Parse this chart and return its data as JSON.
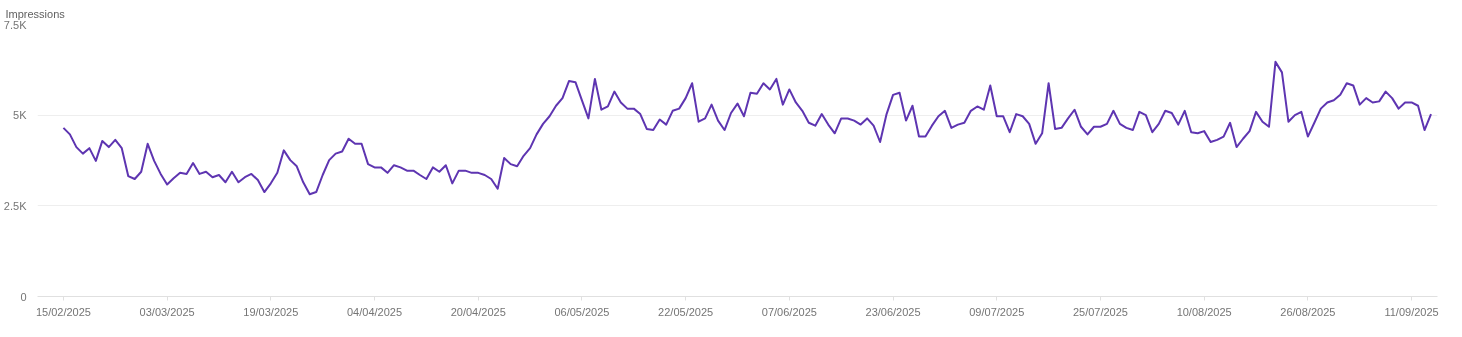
{
  "chart_data": {
    "type": "line",
    "ylabel": "Impressions",
    "x": [
      "2025-02-15",
      "2025-02-16",
      "2025-02-17",
      "2025-02-18",
      "2025-02-19",
      "2025-02-20",
      "2025-02-21",
      "2025-02-22",
      "2025-02-23",
      "2025-02-24",
      "2025-02-25",
      "2025-02-26",
      "2025-02-27",
      "2025-02-28",
      "2025-03-01",
      "2025-03-02",
      "2025-03-03",
      "2025-03-04",
      "2025-03-05",
      "2025-03-06",
      "2025-03-07",
      "2025-03-08",
      "2025-03-09",
      "2025-03-10",
      "2025-03-11",
      "2025-03-12",
      "2025-03-13",
      "2025-03-14",
      "2025-03-15",
      "2025-03-16",
      "2025-03-17",
      "2025-03-18",
      "2025-03-19",
      "2025-03-20",
      "2025-03-21",
      "2025-03-22",
      "2025-03-23",
      "2025-03-24",
      "2025-03-25",
      "2025-03-26",
      "2025-03-27",
      "2025-03-28",
      "2025-03-29",
      "2025-03-30",
      "2025-03-31",
      "2025-04-01",
      "2025-04-02",
      "2025-04-03",
      "2025-04-04",
      "2025-04-05",
      "2025-04-06",
      "2025-04-07",
      "2025-04-08",
      "2025-04-09",
      "2025-04-10",
      "2025-04-11",
      "2025-04-12",
      "2025-04-13",
      "2025-04-14",
      "2025-04-15",
      "2025-04-16",
      "2025-04-17",
      "2025-04-18",
      "2025-04-19",
      "2025-04-20",
      "2025-04-21",
      "2025-04-22",
      "2025-04-23",
      "2025-04-24",
      "2025-04-25",
      "2025-04-26",
      "2025-04-27",
      "2025-04-28",
      "2025-04-29",
      "2025-04-30",
      "2025-05-01",
      "2025-05-02",
      "2025-05-03",
      "2025-05-04",
      "2025-05-05",
      "2025-05-06",
      "2025-05-07",
      "2025-05-08",
      "2025-05-09",
      "2025-05-10",
      "2025-05-11",
      "2025-05-12",
      "2025-05-13",
      "2025-05-14",
      "2025-05-15",
      "2025-05-16",
      "2025-05-17",
      "2025-05-18",
      "2025-05-19",
      "2025-05-20",
      "2025-05-21",
      "2025-05-22",
      "2025-05-23",
      "2025-05-24",
      "2025-05-25",
      "2025-05-26",
      "2025-05-27",
      "2025-05-28",
      "2025-05-29",
      "2025-05-30",
      "2025-05-31",
      "2025-06-01",
      "2025-06-02",
      "2025-06-03",
      "2025-06-04",
      "2025-06-05",
      "2025-06-06",
      "2025-06-07",
      "2025-06-08",
      "2025-06-09",
      "2025-06-10",
      "2025-06-11",
      "2025-06-12",
      "2025-06-13",
      "2025-06-14",
      "2025-06-15",
      "2025-06-16",
      "2025-06-17",
      "2025-06-18",
      "2025-06-19",
      "2025-06-20",
      "2025-06-21",
      "2025-06-22",
      "2025-06-23",
      "2025-06-24",
      "2025-06-25",
      "2025-06-26",
      "2025-06-27",
      "2025-06-28",
      "2025-06-29",
      "2025-06-30",
      "2025-07-01",
      "2025-07-02",
      "2025-07-03",
      "2025-07-04",
      "2025-07-05",
      "2025-07-06",
      "2025-07-07",
      "2025-07-08",
      "2025-07-09",
      "2025-07-10",
      "2025-07-11",
      "2025-07-12",
      "2025-07-13",
      "2025-07-14",
      "2025-07-15",
      "2025-07-16",
      "2025-07-17",
      "2025-07-18",
      "2025-07-19",
      "2025-07-20",
      "2025-07-21",
      "2025-07-22",
      "2025-07-23",
      "2025-07-24",
      "2025-07-25",
      "2025-07-26",
      "2025-07-27",
      "2025-07-28",
      "2025-07-29",
      "2025-07-30",
      "2025-07-31",
      "2025-08-01",
      "2025-08-02",
      "2025-08-03",
      "2025-08-04",
      "2025-08-05",
      "2025-08-06",
      "2025-08-07",
      "2025-08-08",
      "2025-08-09",
      "2025-08-10",
      "2025-08-11",
      "2025-08-12",
      "2025-08-13",
      "2025-08-14",
      "2025-08-15",
      "2025-08-16",
      "2025-08-17",
      "2025-08-18",
      "2025-08-19",
      "2025-08-20",
      "2025-08-21",
      "2025-08-22",
      "2025-08-23",
      "2025-08-24",
      "2025-08-25",
      "2025-08-26",
      "2025-08-27",
      "2025-08-28",
      "2025-08-29",
      "2025-08-30",
      "2025-08-31",
      "2025-09-01",
      "2025-09-02",
      "2025-09-03",
      "2025-09-04",
      "2025-09-05",
      "2025-09-06",
      "2025-09-07",
      "2025-09-08",
      "2025-09-09",
      "2025-09-10",
      "2025-09-11",
      "2025-09-12",
      "2025-09-13",
      "2025-09-14"
    ],
    "series": [
      {
        "color": "#5e35b1",
        "values": [
          4650,
          4470,
          4120,
          3940,
          4090,
          3740,
          4290,
          4120,
          4320,
          4090,
          3320,
          3240,
          3440,
          4210,
          3740,
          3380,
          3090,
          3260,
          3410,
          3380,
          3680,
          3380,
          3440,
          3290,
          3350,
          3150,
          3440,
          3150,
          3290,
          3380,
          3210,
          2880,
          3120,
          3410,
          4030,
          3760,
          3590,
          3150,
          2820,
          2880,
          3350,
          3760,
          3940,
          4000,
          4350,
          4210,
          4210,
          3650,
          3560,
          3560,
          3410,
          3620,
          3560,
          3470,
          3470,
          3350,
          3240,
          3560,
          3440,
          3620,
          3120,
          3470,
          3470,
          3410,
          3410,
          3350,
          3240,
          2970,
          3820,
          3650,
          3590,
          3880,
          4090,
          4470,
          4760,
          4970,
          5260,
          5470,
          5940,
          5910,
          5410,
          4910,
          6000,
          5150,
          5240,
          5650,
          5350,
          5180,
          5180,
          5030,
          4620,
          4590,
          4880,
          4740,
          5120,
          5180,
          5470,
          5880,
          4820,
          4910,
          5290,
          4850,
          4590,
          5060,
          5320,
          4970,
          5620,
          5590,
          5880,
          5710,
          6000,
          5290,
          5710,
          5350,
          5120,
          4790,
          4710,
          5030,
          4740,
          4500,
          4910,
          4910,
          4850,
          4740,
          4910,
          4710,
          4260,
          5030,
          5560,
          5620,
          4850,
          5260,
          4410,
          4410,
          4710,
          4970,
          5120,
          4650,
          4740,
          4790,
          5120,
          5240,
          5150,
          5820,
          4970,
          4970,
          4530,
          5030,
          4970,
          4760,
          4210,
          4500,
          5880,
          4620,
          4650,
          4910,
          5150,
          4680,
          4470,
          4680,
          4680,
          4760,
          5120,
          4760,
          4650,
          4590,
          5090,
          5000,
          4530,
          4760,
          5120,
          5060,
          4740,
          5120,
          4530,
          4500,
          4560,
          4260,
          4320,
          4410,
          4790,
          4120,
          4350,
          4560,
          5090,
          4820,
          4680,
          6470,
          6180,
          4820,
          5000,
          5090,
          4410,
          4790,
          5180,
          5350,
          5410,
          5560,
          5880,
          5820,
          5290,
          5470,
          5350,
          5380,
          5650,
          5470,
          5180,
          5350,
          5350,
          5260,
          4590,
          5030
        ]
      }
    ],
    "xlim": [
      "2025-02-11",
      "2025-09-15"
    ],
    "xticks": [
      {
        "value": "2025-02-15",
        "label": "15/02/2025"
      },
      {
        "value": "2025-03-03",
        "label": "03/03/2025"
      },
      {
        "value": "2025-03-19",
        "label": "19/03/2025"
      },
      {
        "value": "2025-04-04",
        "label": "04/04/2025"
      },
      {
        "value": "2025-04-20",
        "label": "20/04/2025"
      },
      {
        "value": "2025-05-06",
        "label": "06/05/2025"
      },
      {
        "value": "2025-05-22",
        "label": "22/05/2025"
      },
      {
        "value": "2025-06-07",
        "label": "07/06/2025"
      },
      {
        "value": "2025-06-23",
        "label": "23/06/2025"
      },
      {
        "value": "2025-07-09",
        "label": "09/07/2025"
      },
      {
        "value": "2025-07-25",
        "label": "25/07/2025"
      },
      {
        "value": "2025-08-10",
        "label": "10/08/2025"
      },
      {
        "value": "2025-08-26",
        "label": "26/08/2025"
      },
      {
        "value": "2025-09-11",
        "label": "11/09/2025"
      }
    ],
    "ylim": [
      0,
      7500
    ],
    "yticks": [
      0,
      {
        "value": 2500,
        "label": "2.5K"
      },
      {
        "value": 5000,
        "label": "5K"
      },
      {
        "value": 7500,
        "label": "7.5K"
      }
    ],
    "grid": "y"
  }
}
